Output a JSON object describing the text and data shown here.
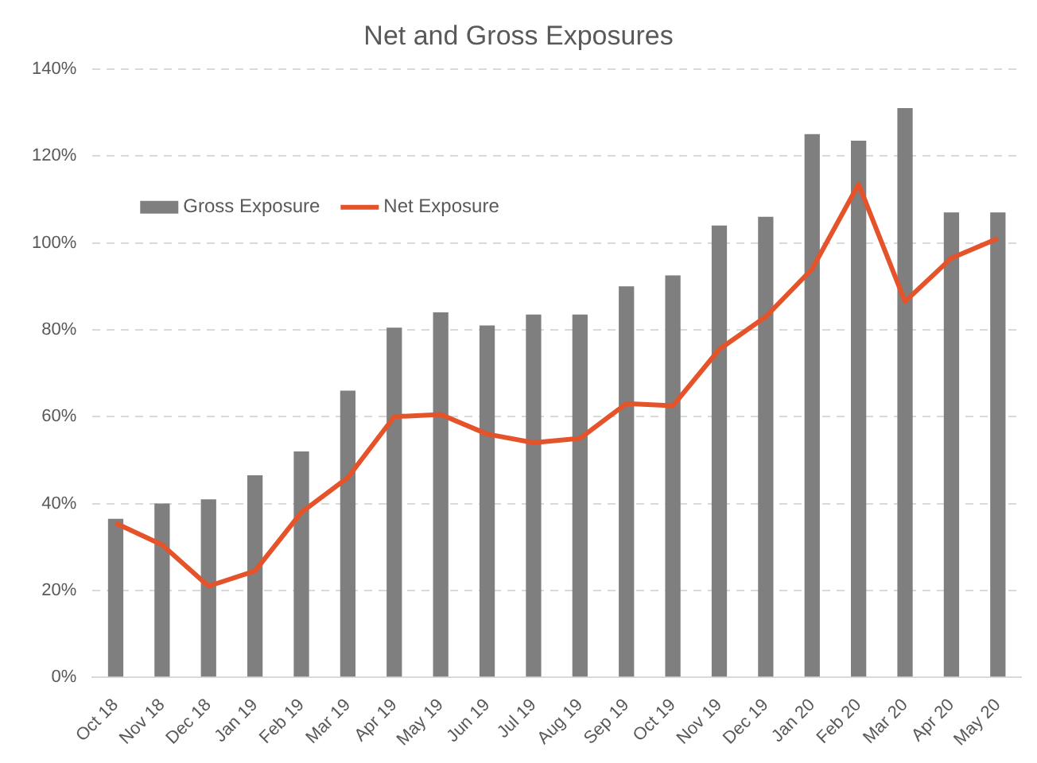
{
  "chart_data": {
    "type": "bar",
    "title": "Net and Gross Exposures",
    "categories": [
      "Oct 18",
      "Nov 18",
      "Dec 18",
      "Jan 19",
      "Feb 19",
      "Mar 19",
      "Apr 19",
      "May 19",
      "Jun 19",
      "Jul 19",
      "Aug 19",
      "Sep 19",
      "Oct 19",
      "Nov 19",
      "Dec 19",
      "Jan 20",
      "Feb 20",
      "Mar 20",
      "Apr 20",
      "May 20"
    ],
    "series": [
      {
        "name": "Gross Exposure",
        "color": "#7f7f7f",
        "values": [
          36.5,
          40,
          41,
          46.5,
          52,
          66,
          80.5,
          84,
          81,
          83.5,
          83.5,
          90,
          92.5,
          104,
          106,
          125,
          123.5,
          131,
          107,
          107
        ]
      },
      {
        "name": "Net Exposure",
        "type": "line",
        "color": "#e5532b",
        "values": [
          35.5,
          30.5,
          21,
          24.5,
          38,
          46,
          60,
          60.5,
          56,
          54,
          55,
          63,
          62.5,
          75.5,
          83,
          94,
          113.5,
          86.5,
          96.5,
          101
        ]
      }
    ],
    "ylim": [
      0,
      140
    ],
    "yticks": [
      {
        "value": 0,
        "label": "0%"
      },
      {
        "value": 20,
        "label": "20%"
      },
      {
        "value": 40,
        "label": "40%"
      },
      {
        "value": 60,
        "label": "60%"
      },
      {
        "value": 80,
        "label": "80%"
      },
      {
        "value": 100,
        "label": "100%"
      },
      {
        "value": 120,
        "label": "120%"
      },
      {
        "value": 140,
        "label": "140%"
      }
    ],
    "grid": "y",
    "legend": "top left",
    "marker": "none",
    "line_style": "solid"
  }
}
